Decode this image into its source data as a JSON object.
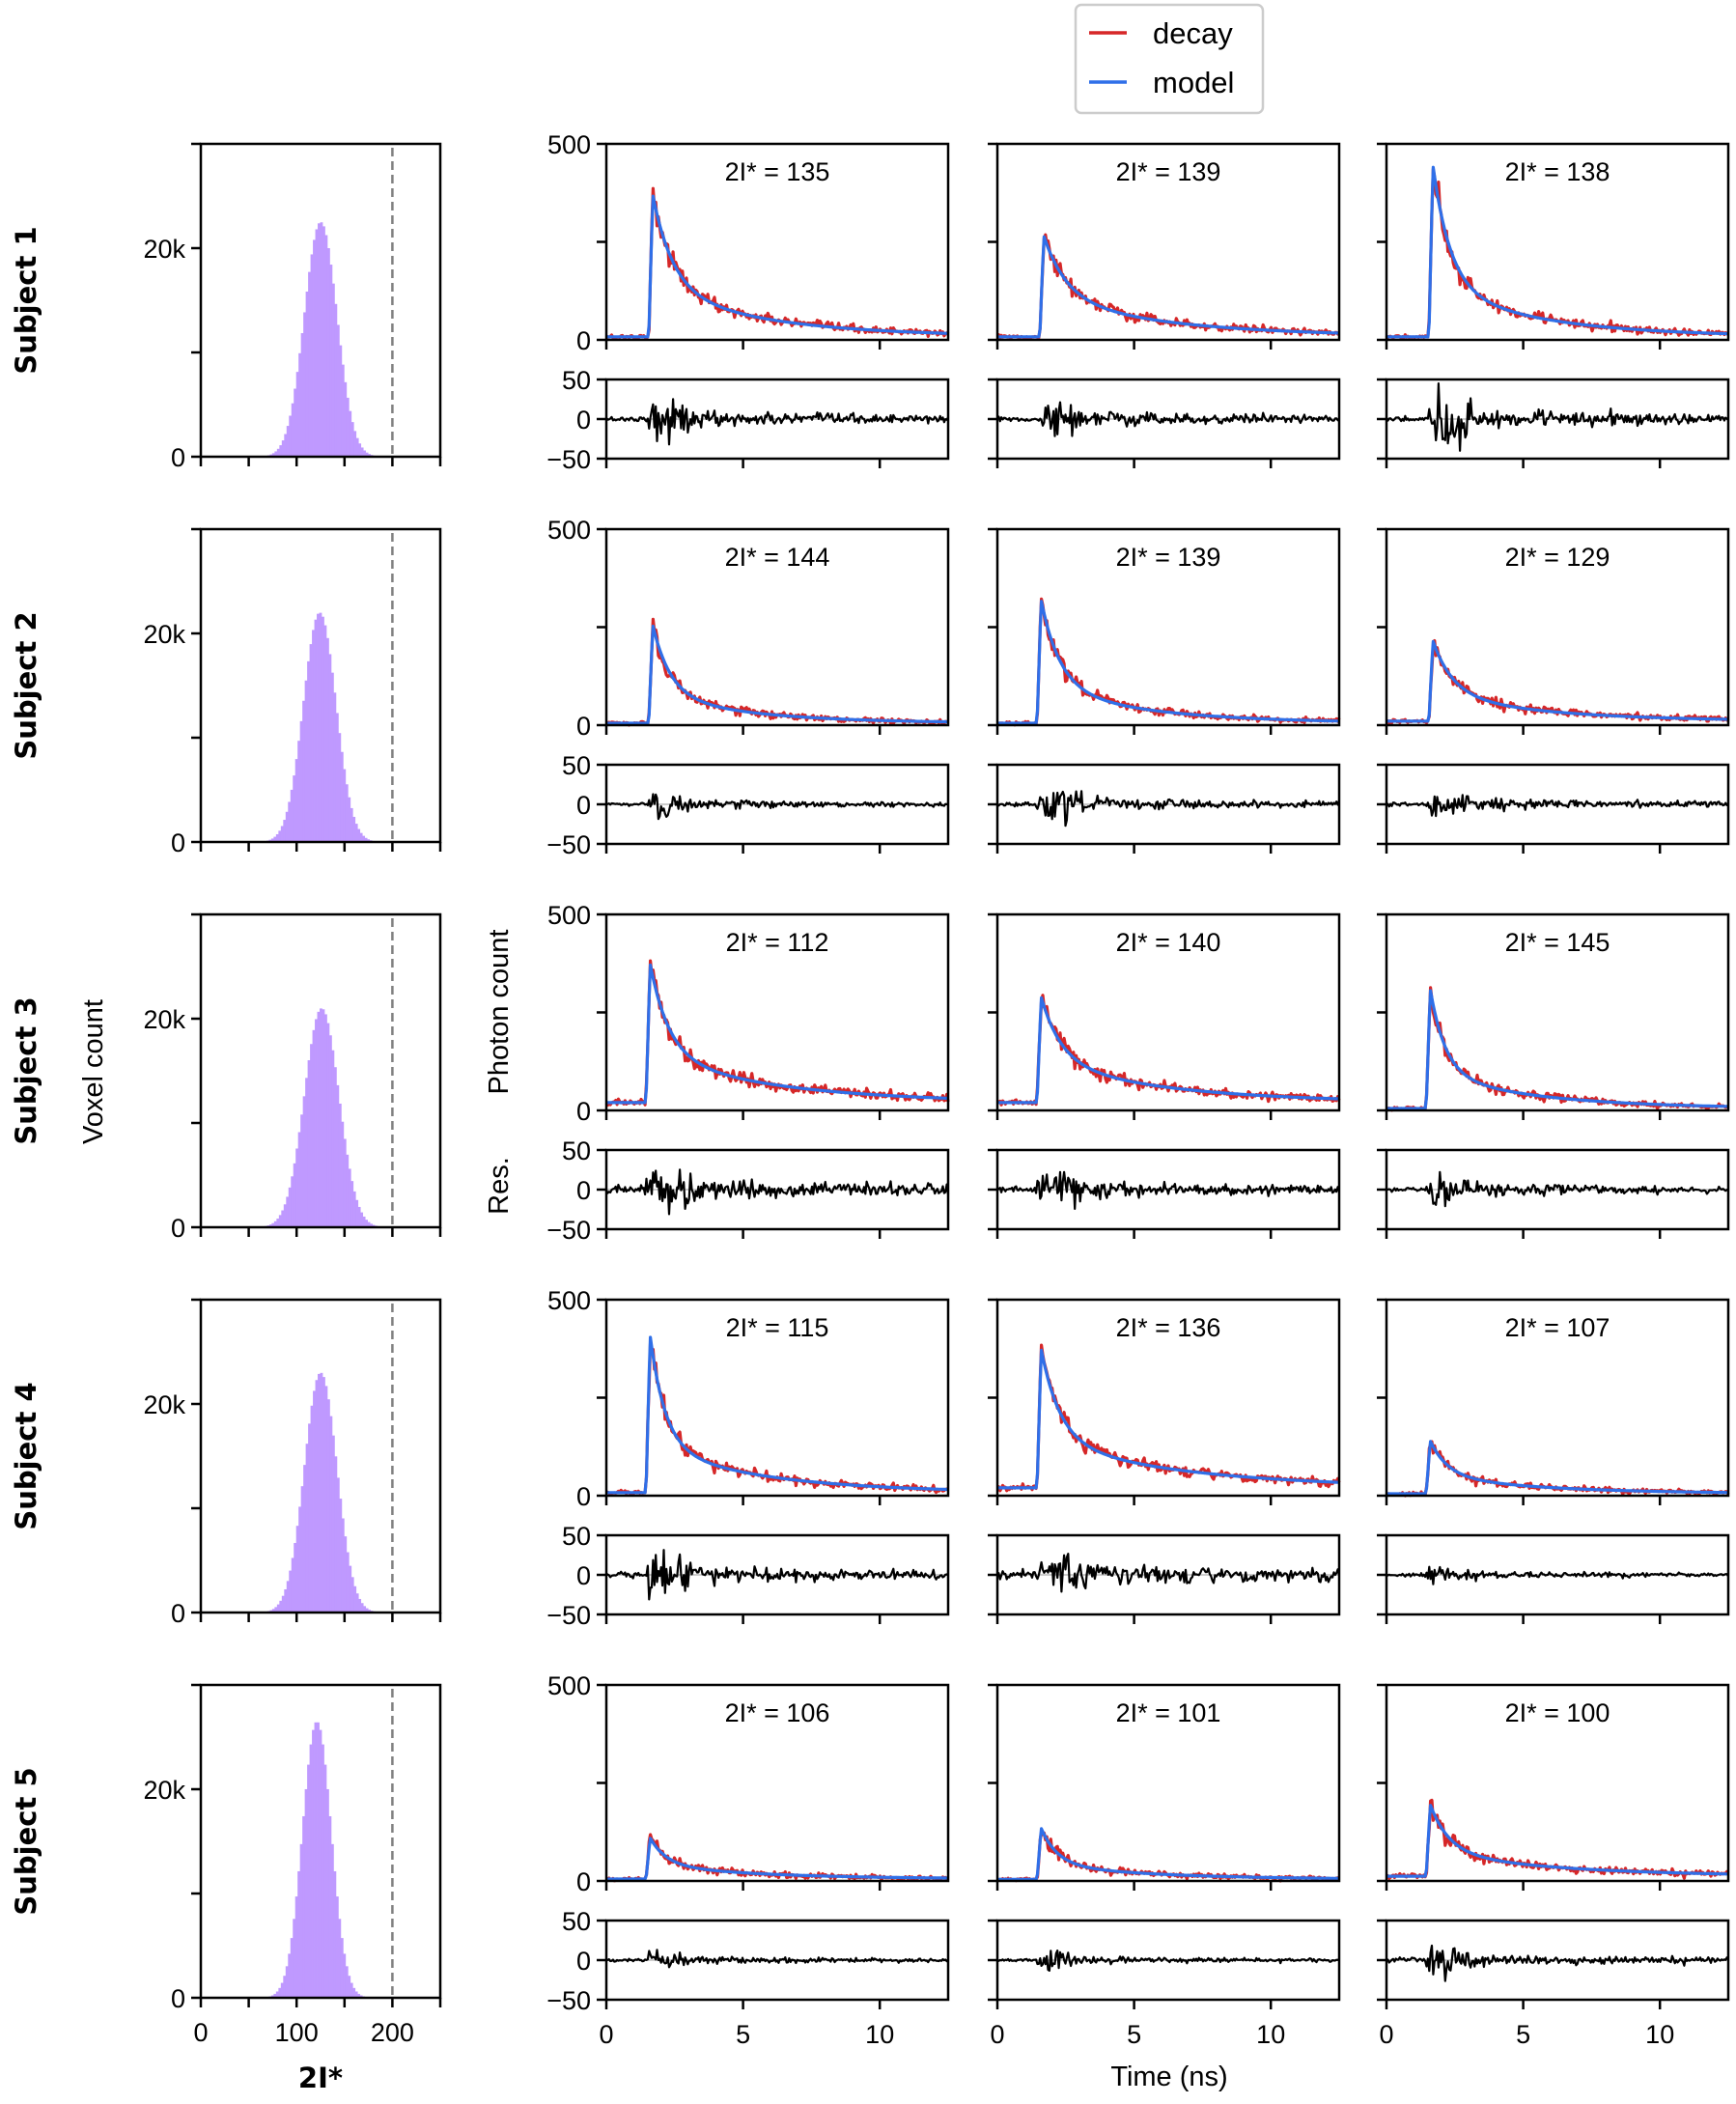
{
  "chart_data": {
    "type": "line",
    "title": "",
    "legend": {
      "placement": "top-center",
      "entries": [
        {
          "label": "decay",
          "color": "#d62728"
        },
        {
          "label": "model",
          "color": "#2f6fe8"
        }
      ]
    },
    "colors": {
      "decay": "#d62728",
      "model": "#2f6fe8",
      "residual": "#000000",
      "histogram": "#bf99ff",
      "threshold_line": "#808080",
      "zero_line": "#cccccc"
    },
    "histogram_axes": {
      "xlabel": "2I*",
      "ylabel": "Voxel count",
      "xlim": [
        0,
        250
      ],
      "ylim": [
        0,
        30000
      ],
      "xticks": [
        0,
        50,
        100,
        150,
        200,
        250
      ],
      "xtick_labels": [
        "0",
        "",
        "100",
        "",
        "200",
        ""
      ],
      "yticks": [
        0,
        10000,
        20000,
        30000
      ],
      "ytick_labels": [
        "0",
        "",
        "20k",
        ""
      ],
      "threshold": 200
    },
    "decay_axes": {
      "xlabel": "Time (ns)",
      "ylabel": "Photon count",
      "xlim": [
        0,
        12.5
      ],
      "ylim": [
        0,
        500
      ],
      "xticks": [
        0,
        5,
        10
      ],
      "xtick_labels": [
        "0",
        "5",
        "10"
      ],
      "yticks": [
        0,
        250,
        500
      ],
      "ytick_labels": [
        "0",
        "",
        "500"
      ]
    },
    "residual_axes": {
      "ylabel": "Res.",
      "ylim": [
        -50,
        50
      ],
      "yticks": [
        -50,
        0,
        50
      ],
      "ytick_labels": [
        "−50",
        "0",
        "50"
      ]
    },
    "annotation_prefix": "2I* = ",
    "subjects": [
      {
        "label": "Subject 1",
        "histogram": {
          "mean": 125,
          "std": 17,
          "peak_count": 22500
        },
        "voxels": [
          {
            "two_i_star": 135,
            "peak": 370,
            "baseline": 8,
            "peak_time": 1.7,
            "tau": 1.6,
            "tail": 0.35,
            "tau2": 4.0,
            "residual_amp": 8
          },
          {
            "two_i_star": 139,
            "peak": 265,
            "baseline": 8,
            "peak_time": 1.7,
            "tau": 1.8,
            "tail": 0.4,
            "tau2": 4.5,
            "residual_amp": 8
          },
          {
            "two_i_star": 138,
            "peak": 445,
            "baseline": 8,
            "peak_time": 1.7,
            "tau": 1.4,
            "tail": 0.3,
            "tau2": 3.8,
            "residual_amp": 10
          }
        ]
      },
      {
        "label": "Subject 2",
        "histogram": {
          "mean": 124,
          "std": 17,
          "peak_count": 22000
        },
        "voxels": [
          {
            "two_i_star": 144,
            "peak": 255,
            "baseline": 5,
            "peak_time": 1.7,
            "tau": 1.4,
            "tail": 0.3,
            "tau2": 3.5,
            "residual_amp": 6
          },
          {
            "two_i_star": 139,
            "peak": 320,
            "baseline": 5,
            "peak_time": 1.6,
            "tau": 1.5,
            "tail": 0.3,
            "tau2": 3.8,
            "residual_amp": 8
          },
          {
            "two_i_star": 129,
            "peak": 215,
            "baseline": 10,
            "peak_time": 1.7,
            "tau": 1.6,
            "tail": 0.35,
            "tau2": 4.0,
            "residual_amp": 7
          }
        ]
      },
      {
        "label": "Subject 3",
        "histogram": {
          "mean": 126,
          "std": 18,
          "peak_count": 21000
        },
        "voxels": [
          {
            "two_i_star": 112,
            "peak": 375,
            "baseline": 20,
            "peak_time": 1.6,
            "tau": 1.5,
            "tail": 0.35,
            "tau2": 4.5,
            "residual_amp": 9
          },
          {
            "two_i_star": 140,
            "peak": 290,
            "baseline": 20,
            "peak_time": 1.6,
            "tau": 1.6,
            "tail": 0.4,
            "tau2": 4.5,
            "residual_amp": 8
          },
          {
            "two_i_star": 145,
            "peak": 310,
            "baseline": 5,
            "peak_time": 1.6,
            "tau": 1.2,
            "tail": 0.3,
            "tau2": 3.8,
            "residual_amp": 8
          }
        ]
      },
      {
        "label": "Subject 4",
        "histogram": {
          "mean": 125,
          "std": 17,
          "peak_count": 23000
        },
        "voxels": [
          {
            "two_i_star": 115,
            "peak": 410,
            "baseline": 8,
            "peak_time": 1.6,
            "tau": 1.2,
            "tail": 0.3,
            "tau2": 4.0,
            "residual_amp": 9
          },
          {
            "two_i_star": 136,
            "peak": 375,
            "baseline": 20,
            "peak_time": 1.6,
            "tau": 1.5,
            "tail": 0.35,
            "tau2": 5.0,
            "residual_amp": 10
          },
          {
            "two_i_star": 107,
            "peak": 140,
            "baseline": 5,
            "peak_time": 1.6,
            "tau": 1.4,
            "tail": 0.35,
            "tau2": 4.0,
            "residual_amp": 6
          }
        ]
      },
      {
        "label": "Subject 5",
        "histogram": {
          "mean": 121,
          "std": 15,
          "peak_count": 26500
        },
        "voxels": [
          {
            "two_i_star": 106,
            "peak": 110,
            "baseline": 5,
            "peak_time": 1.6,
            "tau": 1.3,
            "tail": 0.35,
            "tau2": 4.0,
            "residual_amp": 6
          },
          {
            "two_i_star": 101,
            "peak": 135,
            "baseline": 4,
            "peak_time": 1.6,
            "tau": 1.3,
            "tail": 0.3,
            "tau2": 4.0,
            "residual_amp": 6
          },
          {
            "two_i_star": 100,
            "peak": 195,
            "baseline": 12,
            "peak_time": 1.6,
            "tau": 1.5,
            "tail": 0.35,
            "tau2": 4.5,
            "residual_amp": 7
          }
        ]
      }
    ]
  }
}
